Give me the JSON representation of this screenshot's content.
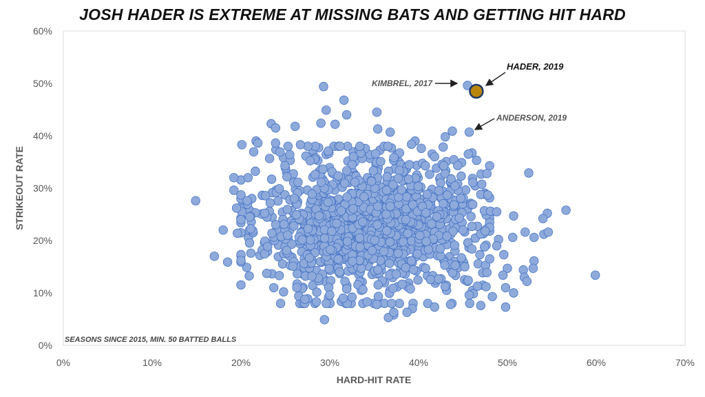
{
  "chart_data": {
    "type": "scatter",
    "title": "JOSH HADER IS EXTREME AT MISSING BATS AND GETTING HIT HARD",
    "xlabel": "HARD-HIT RATE",
    "ylabel": "STRIKEOUT RATE",
    "xlim": [
      0,
      70
    ],
    "ylim": [
      0,
      60
    ],
    "x_ticks": [
      "0%",
      "10%",
      "20%",
      "30%",
      "40%",
      "50%",
      "60%",
      "70%"
    ],
    "y_ticks": [
      "0%",
      "10%",
      "20%",
      "30%",
      "40%",
      "50%",
      "60%"
    ],
    "grid": false,
    "note": "SEASONS SINCE 2015, MIN. 50 BATTED BALLS",
    "colors": {
      "points": "#8eaadb",
      "point_stroke": "#4472c4",
      "highlight": "#b8860b",
      "highlight_stroke": "#1f3864"
    },
    "highlight": {
      "label": "HADER, 2019",
      "x": 46.5,
      "y": 48.5
    },
    "annotations": [
      {
        "label": "KIMBREL, 2017",
        "x": 45.5,
        "y": 49.6
      },
      {
        "label": "ANDERSON, 2019",
        "x": 45.7,
        "y": 40.7
      }
    ],
    "cluster": {
      "center_x": 34.5,
      "center_y": 23,
      "spread_x": 6.2,
      "spread_y": 6.5,
      "count": 1200
    },
    "points": [
      {
        "x": 14.9,
        "y": 27.6
      },
      {
        "x": 17.0,
        "y": 17.0
      },
      {
        "x": 18.0,
        "y": 22.0
      },
      {
        "x": 18.5,
        "y": 15.9
      },
      {
        "x": 19.2,
        "y": 32.0
      },
      {
        "x": 19.2,
        "y": 29.6
      },
      {
        "x": 19.5,
        "y": 26.2
      },
      {
        "x": 19.6,
        "y": 21.4
      },
      {
        "x": 20.0,
        "y": 17.3
      },
      {
        "x": 20.0,
        "y": 16.2
      },
      {
        "x": 20.1,
        "y": 38.3
      },
      {
        "x": 21.7,
        "y": 39.0
      },
      {
        "x": 21.9,
        "y": 38.6
      },
      {
        "x": 20.8,
        "y": 32.0
      },
      {
        "x": 20.7,
        "y": 27.6
      },
      {
        "x": 21.0,
        "y": 24.5
      },
      {
        "x": 23.4,
        "y": 42.3
      },
      {
        "x": 23.9,
        "y": 41.5
      },
      {
        "x": 26.1,
        "y": 41.8
      },
      {
        "x": 26.7,
        "y": 38.3
      },
      {
        "x": 23.9,
        "y": 38.6
      },
      {
        "x": 24.4,
        "y": 36.9
      },
      {
        "x": 25.5,
        "y": 36.4
      },
      {
        "x": 24.8,
        "y": 10.2
      },
      {
        "x": 23.7,
        "y": 11.0
      },
      {
        "x": 26.5,
        "y": 9.4
      },
      {
        "x": 27.2,
        "y": 8.8
      },
      {
        "x": 28.5,
        "y": 8.3
      },
      {
        "x": 29.4,
        "y": 4.9
      },
      {
        "x": 29.3,
        "y": 49.4
      },
      {
        "x": 29.0,
        "y": 42.4
      },
      {
        "x": 29.6,
        "y": 44.9
      },
      {
        "x": 30.6,
        "y": 42.2
      },
      {
        "x": 31.6,
        "y": 46.8
      },
      {
        "x": 31.9,
        "y": 44.0
      },
      {
        "x": 35.3,
        "y": 44.5
      },
      {
        "x": 35.4,
        "y": 41.3
      },
      {
        "x": 36.8,
        "y": 40.7
      },
      {
        "x": 39.6,
        "y": 39.0
      },
      {
        "x": 39.2,
        "y": 38.4
      },
      {
        "x": 40.3,
        "y": 37.6
      },
      {
        "x": 41.8,
        "y": 36.0
      },
      {
        "x": 43.0,
        "y": 39.8
      },
      {
        "x": 43.8,
        "y": 40.9
      },
      {
        "x": 44.8,
        "y": 32.3
      },
      {
        "x": 45.6,
        "y": 36.5
      },
      {
        "x": 47.7,
        "y": 32.8
      },
      {
        "x": 46.1,
        "y": 31.1
      },
      {
        "x": 47.0,
        "y": 28.8
      },
      {
        "x": 47.8,
        "y": 28.7
      },
      {
        "x": 52.4,
        "y": 32.9
      },
      {
        "x": 46.1,
        "y": 26.9
      },
      {
        "x": 47.4,
        "y": 25.7
      },
      {
        "x": 48.1,
        "y": 25.6
      },
      {
        "x": 48.8,
        "y": 25.5
      },
      {
        "x": 50.7,
        "y": 24.7
      },
      {
        "x": 54.5,
        "y": 25.2
      },
      {
        "x": 56.6,
        "y": 25.8
      },
      {
        "x": 54.0,
        "y": 24.2
      },
      {
        "x": 52.0,
        "y": 21.6
      },
      {
        "x": 53.0,
        "y": 20.6
      },
      {
        "x": 54.1,
        "y": 21.2
      },
      {
        "x": 54.6,
        "y": 21.6
      },
      {
        "x": 50.6,
        "y": 20.6
      },
      {
        "x": 49.0,
        "y": 20.2
      },
      {
        "x": 47.5,
        "y": 21.8
      },
      {
        "x": 48.8,
        "y": 19.0
      },
      {
        "x": 49.6,
        "y": 17.3
      },
      {
        "x": 50.0,
        "y": 14.7
      },
      {
        "x": 51.8,
        "y": 14.4
      },
      {
        "x": 53.0,
        "y": 16.1
      },
      {
        "x": 52.9,
        "y": 14.7
      },
      {
        "x": 51.9,
        "y": 13.0
      },
      {
        "x": 52.2,
        "y": 12.2
      },
      {
        "x": 49.5,
        "y": 13.4
      },
      {
        "x": 49.8,
        "y": 11.0
      },
      {
        "x": 50.7,
        "y": 10.0
      },
      {
        "x": 49.8,
        "y": 7.3
      },
      {
        "x": 47.6,
        "y": 11.2
      },
      {
        "x": 47.0,
        "y": 7.6
      },
      {
        "x": 48.3,
        "y": 9.3
      },
      {
        "x": 45.7,
        "y": 9.6
      },
      {
        "x": 43.6,
        "y": 7.8
      },
      {
        "x": 41.8,
        "y": 7.3
      },
      {
        "x": 39.3,
        "y": 7.0
      },
      {
        "x": 38.7,
        "y": 6.3
      },
      {
        "x": 37.2,
        "y": 5.8
      },
      {
        "x": 36.6,
        "y": 5.3
      },
      {
        "x": 37.2,
        "y": 6.3
      },
      {
        "x": 35.3,
        "y": 7.8
      },
      {
        "x": 34.2,
        "y": 8.3
      },
      {
        "x": 32.5,
        "y": 9.2
      },
      {
        "x": 31.5,
        "y": 9.0
      },
      {
        "x": 30.0,
        "y": 9.6
      },
      {
        "x": 59.9,
        "y": 13.4
      },
      {
        "x": 45.2,
        "y": 15.0
      },
      {
        "x": 47.7,
        "y": 13.9
      },
      {
        "x": 46.0,
        "y": 18.4
      },
      {
        "x": 46.9,
        "y": 17.3
      },
      {
        "x": 45.0,
        "y": 22.0
      },
      {
        "x": 44.6,
        "y": 24.3
      },
      {
        "x": 45.9,
        "y": 24.6
      },
      {
        "x": 46.0,
        "y": 22.7
      }
    ]
  }
}
